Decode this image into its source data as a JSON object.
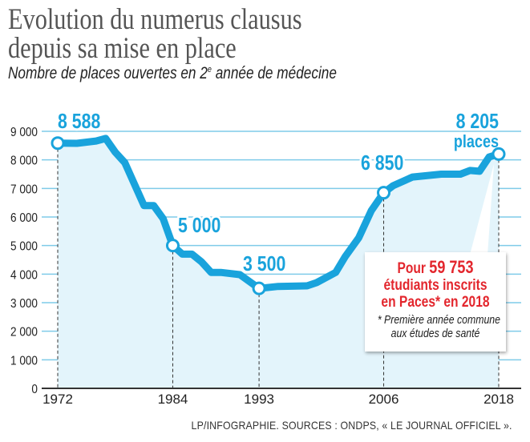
{
  "title_line1": "Evolution du numerus clausus",
  "title_line2": "depuis sa mise en place",
  "subtitle_before": "Nombre de places ouvertes en 2",
  "subtitle_sup": "e",
  "subtitle_after": " année de médecine",
  "source": "LP/INFOGRAPHIE. SOURCES : ONDPS, « LE JOURNAL OFFICIEL ».",
  "callout": {
    "line1_prefix": "Pour ",
    "line1_number": "59 753",
    "line2": "étudiants inscrits",
    "line3": "en Paces* en 2018",
    "note1": "* Première année commune",
    "note2": "aux études de santé"
  },
  "icon": "caduceus-icon",
  "colors": {
    "line": "#19a3dc",
    "fill": "#e3f4fb",
    "grid": "#7fcbe9",
    "label": "#19a3dc",
    "callout_text": "#e3262d"
  },
  "chart_data": {
    "type": "area",
    "title": "Evolution du numerus clausus depuis sa mise en place",
    "subtitle": "Nombre de places ouvertes en 2e année de médecine",
    "xlim": [
      1972,
      2018
    ],
    "ylim": [
      0,
      9000
    ],
    "grid": true,
    "x_ticks": [
      "1972",
      "1984",
      "1993",
      "2006",
      "2018"
    ],
    "y_ticks": [
      "0",
      "1 000",
      "2 000",
      "3 000",
      "4 000",
      "5 000",
      "6 000",
      "7 000",
      "8 000",
      "9 000"
    ],
    "points": [
      [
        1972,
        8588
      ],
      [
        1974,
        8580
      ],
      [
        1976,
        8660
      ],
      [
        1977,
        8750
      ],
      [
        1978,
        8270
      ],
      [
        1979,
        7900
      ],
      [
        1981,
        6400
      ],
      [
        1982,
        6400
      ],
      [
        1983,
        5940
      ],
      [
        1984,
        5000
      ],
      [
        1985,
        4700
      ],
      [
        1986,
        4700
      ],
      [
        1987,
        4430
      ],
      [
        1988,
        4060
      ],
      [
        1989,
        4060
      ],
      [
        1991,
        3980
      ],
      [
        1993,
        3500
      ],
      [
        1995,
        3570
      ],
      [
        1998,
        3590
      ],
      [
        1999,
        3700
      ],
      [
        2001,
        4060
      ],
      [
        2002,
        4620
      ],
      [
        2003.4,
        5270
      ],
      [
        2004.7,
        6220
      ],
      [
        2006,
        6850
      ],
      [
        2007,
        7100
      ],
      [
        2009,
        7400
      ],
      [
        2012,
        7500
      ],
      [
        2014,
        7500
      ],
      [
        2015,
        7630
      ],
      [
        2016,
        7600
      ],
      [
        2017,
        8100
      ],
      [
        2018,
        8205
      ]
    ],
    "annotations": [
      {
        "x": 1972,
        "y": 8588,
        "label": "8 588"
      },
      {
        "x": 1984,
        "y": 5000,
        "label": "5 000"
      },
      {
        "x": 1993,
        "y": 3500,
        "label": "3 500"
      },
      {
        "x": 2006,
        "y": 6850,
        "label": "6 850"
      },
      {
        "x": 2018,
        "y": 8205,
        "label": "8 205",
        "sublabel": "places"
      }
    ]
  }
}
